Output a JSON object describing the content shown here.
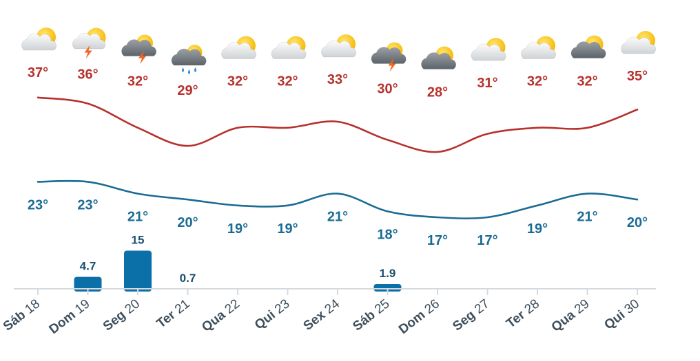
{
  "chart_data": {
    "type": "line",
    "categories": [
      {
        "weekday": "Sáb",
        "day": "18"
      },
      {
        "weekday": "Dom",
        "day": "19"
      },
      {
        "weekday": "Seg",
        "day": "20"
      },
      {
        "weekday": "Ter",
        "day": "21"
      },
      {
        "weekday": "Qua",
        "day": "22"
      },
      {
        "weekday": "Qui",
        "day": "23"
      },
      {
        "weekday": "Sex",
        "day": "24"
      },
      {
        "weekday": "Sáb",
        "day": "25"
      },
      {
        "weekday": "Dom",
        "day": "26"
      },
      {
        "weekday": "Seg",
        "day": "27"
      },
      {
        "weekday": "Ter",
        "day": "28"
      },
      {
        "weekday": "Qua",
        "day": "29"
      },
      {
        "weekday": "Qui",
        "day": "30"
      }
    ],
    "series": [
      {
        "key": "max",
        "values": [
          37,
          36,
          32,
          29,
          32,
          32,
          33,
          30,
          28,
          31,
          32,
          32,
          35
        ],
        "labels": [
          "37°",
          "36°",
          "32°",
          "29°",
          "32°",
          "32°",
          "33°",
          "30°",
          "28°",
          "31°",
          "32°",
          "32°",
          "35°"
        ],
        "color": "#b7312c"
      },
      {
        "key": "min",
        "values": [
          23,
          23,
          21,
          20,
          19,
          19,
          21,
          18,
          17,
          17,
          19,
          21,
          20
        ],
        "labels": [
          "23°",
          "23°",
          "21°",
          "20°",
          "19°",
          "19°",
          "21°",
          "18°",
          "17°",
          "17°",
          "19°",
          "21°",
          "20°"
        ],
        "color": "#1b6b94"
      }
    ],
    "precipitation": {
      "values": [
        0,
        4.7,
        15,
        0.7,
        0,
        0,
        0,
        1.9,
        0,
        0,
        0,
        0,
        0
      ],
      "labels": [
        "",
        "4.7",
        "15",
        "0.7",
        "",
        "",
        "",
        "1.9",
        "",
        "",
        "",
        "",
        ""
      ],
      "color": "#0b6fa8",
      "label_color": "#1b4f6e"
    },
    "icons": [
      "partly-cloudy-icon",
      "thunderstorm-sun-icon",
      "thunderstorm-cloud-icon",
      "rain-cloud-icon",
      "partly-cloudy-icon",
      "partly-cloudy-icon",
      "partly-cloudy-icon",
      "thunderstorm-cloud-icon",
      "dark-cloud-sun-icon",
      "partly-cloudy-icon",
      "partly-cloudy-icon",
      "dark-cloud-sun-icon",
      "partly-cloudy-icon"
    ],
    "axis_color": "#d6dadd",
    "title": "",
    "xlabel": "",
    "ylabel": ""
  }
}
